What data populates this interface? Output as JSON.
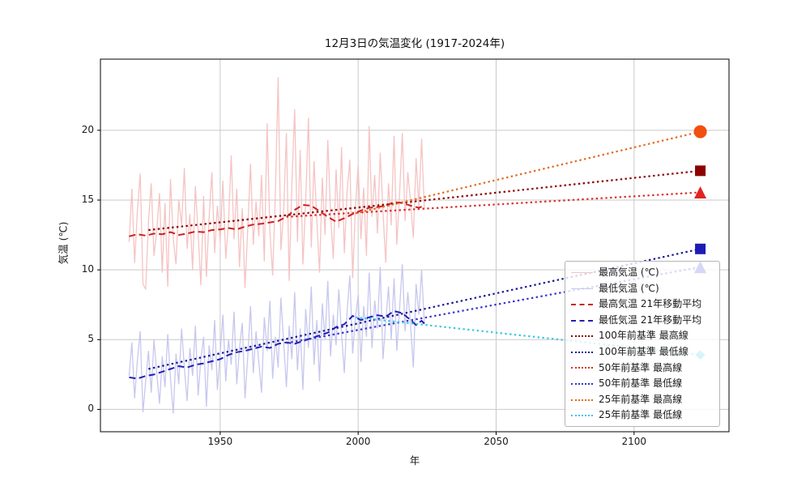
{
  "figure": {
    "background": "#ffffff"
  },
  "chart_data": {
    "type": "line",
    "title": "12月3日の気温変化 (1917-2024年)",
    "xlabel": "年",
    "ylabel": "気温 (℃)",
    "xlim": [
      1906.6,
      2134.4
    ],
    "ylim": [
      -1.6,
      25.1
    ],
    "x_ticks": [
      1950,
      2000,
      2050,
      2100
    ],
    "y_ticks": [
      0,
      5,
      10,
      15,
      20
    ],
    "grid": true,
    "grid_color": "#c9c9c9",
    "legend_position": "lower right",
    "series": [
      {
        "id": "max-raw",
        "label": "最高気温 (℃)",
        "color": "#f6c3c3",
        "line_style": "solid",
        "width": 1.3,
        "start_year": 1917,
        "values": [
          12.0,
          15.8,
          10.5,
          14.2,
          16.9,
          9.0,
          8.6,
          13.5,
          16.2,
          11.0,
          12.8,
          15.5,
          9.8,
          14.8,
          8.8,
          16.5,
          12.2,
          10.4,
          15.0,
          13.2,
          17.3,
          11.5,
          14.0,
          10.0,
          16.0,
          12.6,
          8.9,
          15.3,
          9.5,
          13.8,
          17.0,
          11.2,
          14.6,
          12.0,
          16.4,
          10.8,
          13.4,
          18.2,
          12.2,
          15.8,
          10.2,
          14.4,
          8.7,
          13.0,
          17.6,
          11.8,
          14.9,
          12.4,
          16.8,
          10.6,
          20.5,
          12.8,
          9.6,
          15.5,
          23.8,
          11.4,
          14.2,
          19.8,
          9.2,
          16.2,
          21.5,
          12.0,
          18.6,
          10.4,
          15.0,
          20.9,
          11.6,
          17.8,
          13.6,
          9.8,
          16.6,
          12.5,
          19.3,
          14.0,
          10.8,
          17.2,
          13.0,
          18.8,
          11.2,
          15.6,
          17.9,
          9.4,
          14.5,
          17.5,
          12.2,
          15.9,
          11.0,
          20.3,
          13.8,
          16.8,
          12.6,
          18.4,
          14.2,
          10.5,
          16.2,
          13.2,
          19.6,
          11.8,
          15.4,
          19.8,
          13.5,
          17.0,
          14.8,
          12.3,
          18.0,
          14.5,
          19.4,
          14.3
        ]
      },
      {
        "id": "min-raw",
        "label": "最低気温 (℃)",
        "color": "#c7c7ef",
        "line_style": "solid",
        "width": 1.3,
        "start_year": 1917,
        "values": [
          2.4,
          4.8,
          0.8,
          3.5,
          5.6,
          -0.2,
          2.0,
          4.2,
          1.2,
          5.0,
          2.6,
          0.4,
          3.8,
          1.6,
          5.4,
          2.2,
          -0.3,
          4.0,
          1.8,
          5.8,
          3.0,
          0.6,
          4.4,
          2.4,
          6.0,
          1.0,
          3.6,
          5.2,
          0.2,
          4.6,
          2.8,
          6.4,
          1.4,
          4.0,
          6.8,
          2.0,
          5.0,
          3.2,
          7.0,
          1.8,
          4.4,
          6.2,
          0.8,
          3.8,
          7.4,
          2.6,
          5.6,
          3.4,
          1.2,
          6.6,
          4.2,
          7.8,
          2.2,
          5.2,
          3.0,
          8.0,
          4.8,
          1.6,
          6.0,
          3.6,
          8.4,
          2.8,
          5.8,
          1.4,
          7.2,
          4.4,
          8.8,
          3.2,
          6.4,
          2.0,
          7.6,
          5.0,
          9.2,
          3.8,
          6.8,
          4.6,
          8.6,
          5.4,
          2.6,
          7.0,
          9.6,
          4.0,
          6.6,
          8.2,
          3.4,
          7.4,
          5.2,
          9.8,
          4.4,
          7.8,
          5.8,
          10.2,
          3.6,
          6.2,
          8.8,
          5.0,
          9.4,
          4.2,
          7.2,
          10.4,
          5.6,
          8.4,
          6.0,
          3.0,
          9.0,
          6.8,
          10.0,
          6.1
        ]
      },
      {
        "id": "max-ma21",
        "label": "最高気温 21年移動平均",
        "color": "#cb2121",
        "line_style": "dashed",
        "width": 2,
        "points": [
          [
            1917,
            12.4
          ],
          [
            1920,
            12.55
          ],
          [
            1923,
            12.45
          ],
          [
            1926,
            12.6
          ],
          [
            1929,
            12.55
          ],
          [
            1932,
            12.7
          ],
          [
            1935,
            12.5
          ],
          [
            1938,
            12.6
          ],
          [
            1941,
            12.75
          ],
          [
            1944,
            12.7
          ],
          [
            1947,
            12.85
          ],
          [
            1950,
            12.9
          ],
          [
            1953,
            13.0
          ],
          [
            1956,
            12.9
          ],
          [
            1959,
            13.1
          ],
          [
            1962,
            13.25
          ],
          [
            1965,
            13.3
          ],
          [
            1968,
            13.4
          ],
          [
            1971,
            13.5
          ],
          [
            1974,
            13.8
          ],
          [
            1977,
            14.3
          ],
          [
            1980,
            14.65
          ],
          [
            1983,
            14.6
          ],
          [
            1986,
            14.2
          ],
          [
            1989,
            13.8
          ],
          [
            1992,
            13.45
          ],
          [
            1995,
            13.7
          ],
          [
            1998,
            14.0
          ],
          [
            2001,
            14.25
          ],
          [
            2004,
            14.45
          ],
          [
            2007,
            14.5
          ],
          [
            2010,
            14.6
          ],
          [
            2013,
            14.85
          ],
          [
            2016,
            14.8
          ],
          [
            2019,
            14.6
          ],
          [
            2022,
            14.45
          ],
          [
            2024,
            14.6
          ]
        ]
      },
      {
        "id": "min-ma21",
        "label": "最低気温 21年移動平均",
        "color": "#2121b4",
        "line_style": "dashed",
        "width": 2,
        "points": [
          [
            1917,
            2.3
          ],
          [
            1920,
            2.2
          ],
          [
            1923,
            2.4
          ],
          [
            1926,
            2.5
          ],
          [
            1929,
            2.7
          ],
          [
            1932,
            2.9
          ],
          [
            1935,
            3.1
          ],
          [
            1938,
            3.0
          ],
          [
            1941,
            3.2
          ],
          [
            1944,
            3.3
          ],
          [
            1947,
            3.45
          ],
          [
            1950,
            3.6
          ],
          [
            1953,
            3.9
          ],
          [
            1956,
            4.1
          ],
          [
            1959,
            4.2
          ],
          [
            1962,
            4.35
          ],
          [
            1965,
            4.5
          ],
          [
            1968,
            4.4
          ],
          [
            1971,
            4.7
          ],
          [
            1974,
            4.8
          ],
          [
            1977,
            4.7
          ],
          [
            1980,
            4.9
          ],
          [
            1983,
            5.1
          ],
          [
            1986,
            5.3
          ],
          [
            1989,
            5.5
          ],
          [
            1992,
            5.9
          ],
          [
            1995,
            6.1
          ],
          [
            1998,
            6.7
          ],
          [
            2001,
            6.4
          ],
          [
            2004,
            6.6
          ],
          [
            2007,
            6.75
          ],
          [
            2010,
            6.65
          ],
          [
            2013,
            7.05
          ],
          [
            2016,
            6.9
          ],
          [
            2019,
            6.4
          ],
          [
            2021,
            6.05
          ],
          [
            2023,
            6.35
          ],
          [
            2024,
            6.15
          ]
        ]
      },
      {
        "id": "trend100-max",
        "label": "100年前基準 最高線",
        "color": "#8b0000",
        "line_style": "dotted",
        "width": 2.2,
        "points": [
          [
            1924,
            12.85
          ],
          [
            2124,
            17.1
          ]
        ],
        "marker": {
          "shape": "square",
          "size": 13,
          "color": "#8b0000"
        }
      },
      {
        "id": "trend100-min",
        "label": "100年前基準 最低線",
        "color": "#181890",
        "line_style": "dotted",
        "width": 2.2,
        "points": [
          [
            1924,
            2.9
          ],
          [
            2124,
            11.5
          ]
        ],
        "marker": {
          "shape": "square",
          "size": 13,
          "color": "#1c1cb4"
        }
      },
      {
        "id": "trend50-max",
        "label": "50年前基準 最高線",
        "color": "#d83030",
        "line_style": "dotted",
        "width": 2.2,
        "points": [
          [
            1974,
            13.8
          ],
          [
            2124,
            15.55
          ]
        ],
        "marker": {
          "shape": "triangle",
          "size": 15,
          "color": "#e42222"
        }
      },
      {
        "id": "trend50-min",
        "label": "50年前基準 最低線",
        "color": "#3434cf",
        "line_style": "dotted",
        "width": 2.2,
        "points": [
          [
            1974,
            4.75
          ],
          [
            2124,
            10.2
          ]
        ],
        "marker": {
          "shape": "triangle",
          "size": 15,
          "color": "#3434cf"
        }
      },
      {
        "id": "trend25-max",
        "label": "25年前基準 最高線",
        "color": "#e06b20",
        "line_style": "dotted",
        "width": 2.2,
        "points": [
          [
            1999,
            14.05
          ],
          [
            2124,
            19.9
          ]
        ],
        "marker": {
          "shape": "circle",
          "size": 16,
          "color": "#f04f10"
        }
      },
      {
        "id": "trend25-min",
        "label": "25年前基準 最低線",
        "color": "#3fc6e4",
        "line_style": "dotted",
        "width": 2.2,
        "points": [
          [
            1999,
            6.6
          ],
          [
            2124,
            3.9
          ]
        ],
        "marker": {
          "shape": "diamond",
          "size": 12,
          "color": "#3fc6e4"
        }
      }
    ]
  }
}
